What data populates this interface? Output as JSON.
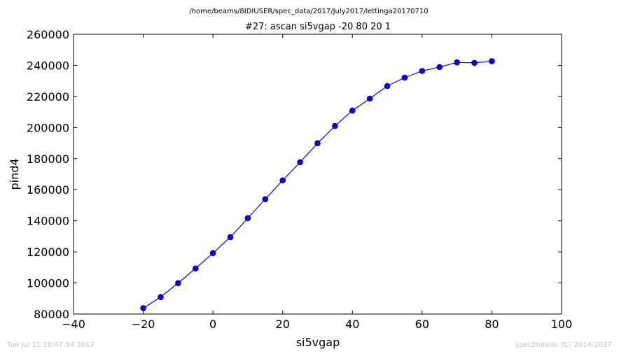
{
  "figure": {
    "suptitle": "/home/beams/8IDIUSER/spec_data/2017/July2017/lettinga20170710",
    "timestamp": "Tue Jul 11 10:47:54 2017",
    "credit": "spec2nexus, (C) 2014-2017"
  },
  "chart_data": {
    "type": "line",
    "title": "#27: ascan  si5vgap -20 80  20 1",
    "xlabel": "si5vgap",
    "ylabel": "pind4",
    "xlim": [
      -40,
      100
    ],
    "ylim": [
      80000,
      260000
    ],
    "xticks": [
      -40,
      -20,
      0,
      20,
      40,
      60,
      80,
      100
    ],
    "yticks": [
      80000,
      100000,
      120000,
      140000,
      160000,
      180000,
      200000,
      220000,
      240000,
      260000
    ],
    "xtick_labels": [
      "−40",
      "−20",
      "0",
      "20",
      "40",
      "60",
      "80",
      "100"
    ],
    "ytick_labels": [
      "80000",
      "100000",
      "120000",
      "140000",
      "160000",
      "180000",
      "200000",
      "220000",
      "240000",
      "260000"
    ],
    "grid": false,
    "series": [
      {
        "color": "#0000ff",
        "marker": "circle",
        "x": [
          -20,
          -15,
          -10,
          -5,
          0,
          5,
          10,
          15,
          20,
          25,
          30,
          35,
          40,
          45,
          50,
          55,
          60,
          65,
          70,
          75,
          80
        ],
        "y": [
          83800,
          90900,
          99900,
          109300,
          119200,
          129500,
          141700,
          153900,
          166000,
          177700,
          189900,
          201000,
          210900,
          218600,
          226700,
          232100,
          236400,
          238900,
          241900,
          241600,
          242700
        ]
      }
    ]
  }
}
